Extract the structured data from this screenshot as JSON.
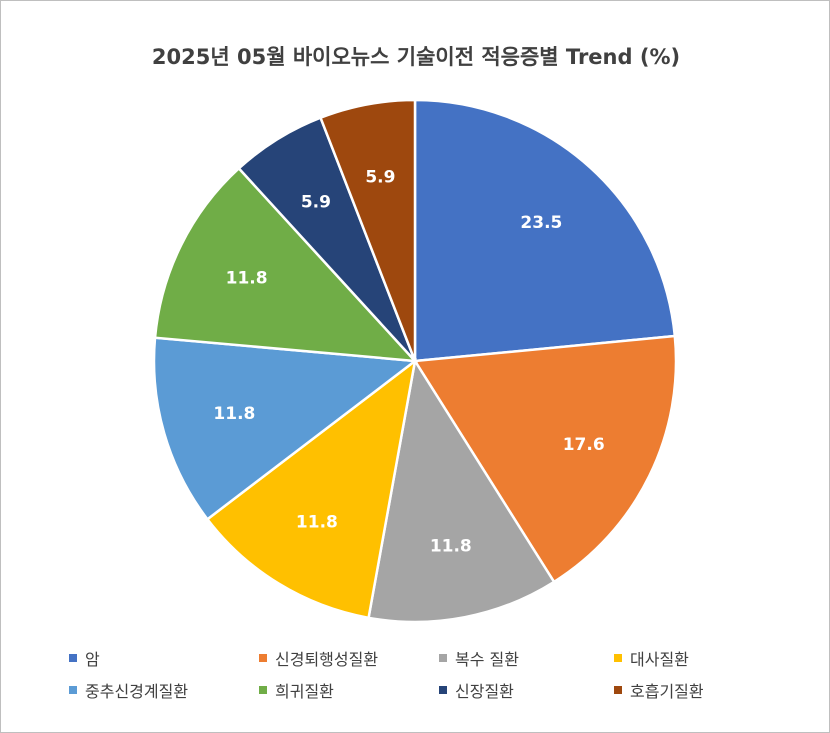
{
  "chart_data": {
    "type": "pie",
    "title": "2025년 05월 바이오뉴스 기술이전 적응증별 Trend (%)",
    "slices": [
      {
        "label": "암",
        "value": 23.5,
        "color": "#4472C4"
      },
      {
        "label": "신경퇴행성질환",
        "value": 17.6,
        "color": "#ED7D31"
      },
      {
        "label": "복수 질환",
        "value": 11.8,
        "color": "#A5A5A5"
      },
      {
        "label": "대사질환",
        "value": 11.8,
        "color": "#FFC000"
      },
      {
        "label": "중추신경계질환",
        "value": 11.8,
        "color": "#5B9BD5"
      },
      {
        "label": "희귀질환",
        "value": 11.8,
        "color": "#70AD47"
      },
      {
        "label": "신장질환",
        "value": 5.9,
        "color": "#264478"
      },
      {
        "label": "호흡기질환",
        "value": 5.9,
        "color": "#9E480E"
      }
    ],
    "legend_position": "bottom"
  }
}
